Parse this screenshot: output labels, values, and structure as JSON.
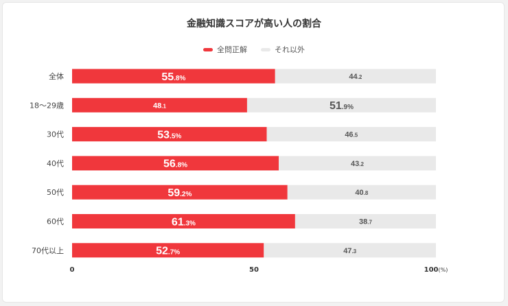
{
  "chart_data": {
    "type": "bar",
    "orientation": "horizontal",
    "stacked": true,
    "title": "金融知識スコアが高い人の割合",
    "categories": [
      "全体",
      "18～29歳",
      "30代",
      "40代",
      "50代",
      "60代",
      "70代以上"
    ],
    "series": [
      {
        "name": "全問正解",
        "color": "#f0373c",
        "values": [
          55.8,
          48.1,
          53.5,
          56.8,
          59.2,
          61.3,
          52.7
        ]
      },
      {
        "name": "それ以外",
        "color": "#e9e9e9",
        "values": [
          44.2,
          51.9,
          46.5,
          43.2,
          40.8,
          38.7,
          47.3
        ]
      }
    ],
    "value_labels": [
      [
        "55.8%",
        "44.2"
      ],
      [
        "48.1",
        "51.9%"
      ],
      [
        "53.5%",
        "46.5"
      ],
      [
        "56.8%",
        "43.2"
      ],
      [
        "59.2%",
        "40.8"
      ],
      [
        "61.3%",
        "38.7"
      ],
      [
        "52.7%",
        "47.3"
      ]
    ],
    "xlim": [
      0,
      100
    ],
    "xticks": [
      "0",
      "50",
      "100(%)"
    ],
    "xtick_values": [
      0,
      50,
      100
    ],
    "legend_position": "top-center"
  }
}
